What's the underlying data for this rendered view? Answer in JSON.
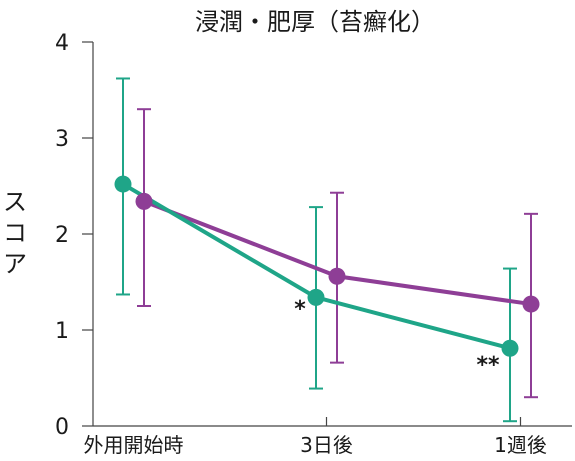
{
  "chart_data": {
    "type": "line",
    "title": "浸潤・肥厚（苔癬化）",
    "ylabel": "スコア",
    "xlabel": "",
    "categories": [
      "外用開始時",
      "3日後",
      "1週後"
    ],
    "yticks": [
      "0",
      "1",
      "2",
      "3",
      "4"
    ],
    "ylim": [
      0,
      4
    ],
    "grid": false,
    "legend": "none",
    "series": [
      {
        "color": "#1fa588",
        "values": [
          2.52,
          1.34,
          0.81
        ],
        "err_high": [
          3.62,
          2.28,
          1.64
        ],
        "err_low": [
          1.37,
          0.39,
          0.05
        ]
      },
      {
        "color": "#8e3e96",
        "values": [
          2.34,
          1.56,
          1.27
        ],
        "err_high": [
          3.3,
          2.43,
          2.21
        ],
        "err_low": [
          1.25,
          0.66,
          0.3
        ]
      }
    ],
    "annotations": [
      {
        "category_index": 1,
        "text": "*"
      },
      {
        "category_index": 2,
        "text": "**"
      }
    ]
  }
}
